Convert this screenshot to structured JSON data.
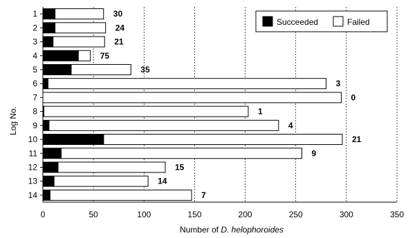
{
  "chart_data": {
    "type": "bar",
    "orientation": "horizontal",
    "stacked": true,
    "categories": [
      "1",
      "2",
      "3",
      "4",
      "5",
      "6",
      "7",
      "8",
      "9",
      "10",
      "11",
      "12",
      "13",
      "14"
    ],
    "series": [
      {
        "name": "Succeeded",
        "color": "#000000",
        "values": [
          12,
          12,
          10,
          35,
          28,
          5,
          0,
          1,
          6,
          60,
          18,
          15,
          11,
          7
        ]
      },
      {
        "name": "Failed",
        "color": "#ffffff",
        "values": [
          48,
          50,
          51,
          12,
          59,
          275,
          295,
          202,
          227,
          236,
          238,
          106,
          93,
          140
        ]
      }
    ],
    "annotations": [
      "30",
      "24",
      "21",
      "75",
      "35",
      "3",
      "0",
      "1",
      "4",
      "21",
      "9",
      "15",
      "14",
      "7"
    ],
    "xlabel_prefix": "Number of ",
    "xlabel_italic": "D. helophoroides",
    "ylabel": "Log No.",
    "xlim": [
      0,
      350
    ],
    "xticks": [
      "0",
      "50",
      "100",
      "150",
      "200",
      "250",
      "300",
      "350"
    ],
    "grid": "vertical dotted",
    "legend_position": "top-right"
  }
}
